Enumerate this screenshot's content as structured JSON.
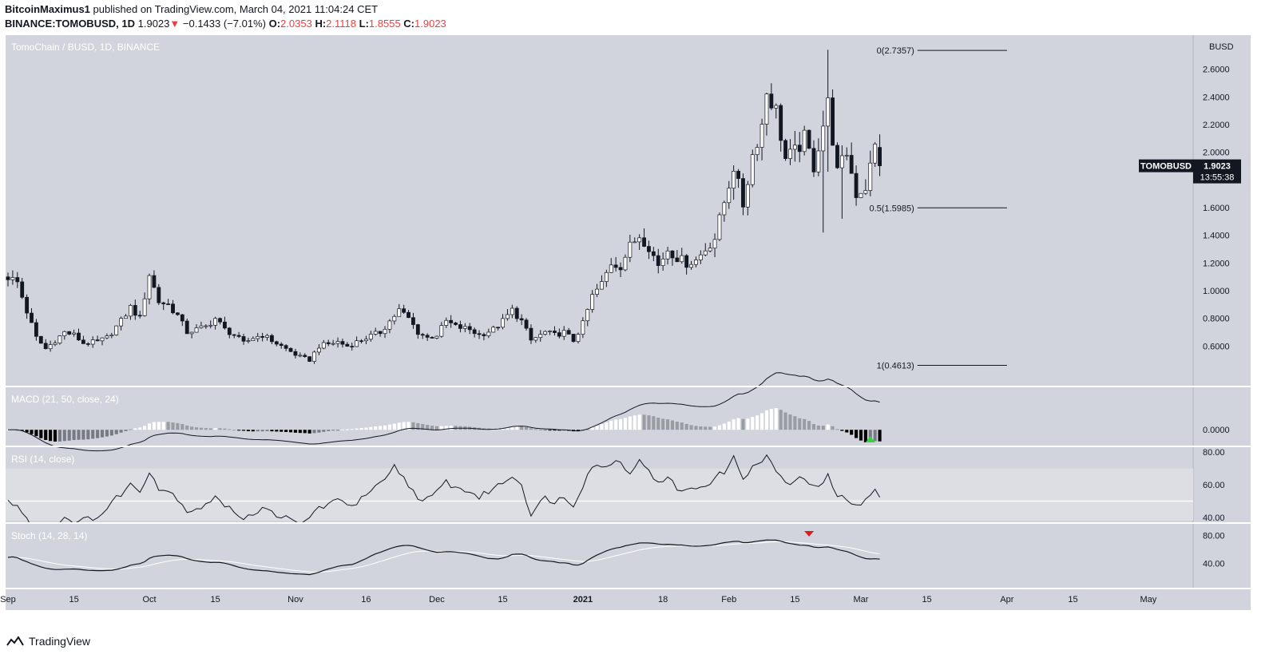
{
  "header": {
    "author": "BitcoinMaximus1",
    "published_text": "published on TradingView.com, March 04, 2021 11:04:24 CET",
    "symbol_line": "BINANCE:TOMOBUSD, 1D",
    "last": "1.9023",
    "change_arrow": "▼",
    "change": "−0.1433 (−7.01%)",
    "o_label": "O:",
    "o": "2.0353",
    "h_label": "H:",
    "h": "2.1118",
    "l_label": "L:",
    "l": "1.8555",
    "c_label": "C:",
    "c": "1.9023"
  },
  "footer": {
    "brand": "TradingView"
  },
  "colors": {
    "pane_bg": "#d1d4dc",
    "rsi_band": "#dcdee4",
    "up_candle": "#ffffff",
    "down_candle": "#131722",
    "price_tag_bg": "#131722",
    "arrow_up": "#35d43e",
    "arrow_down": "#e01b1b"
  },
  "chart_data": [
    {
      "type": "candlestick",
      "title": "TomoChain / BUSD, 1D, BINANCE",
      "price_axis_unit": "BUSD",
      "ylim": [
        0.36,
        2.8
      ],
      "y_ticks": [
        "0.6000",
        "0.8000",
        "1.0000",
        "1.2000",
        "1.4000",
        "1.6000",
        "1.8000",
        "2.0000",
        "2.2000",
        "2.4000",
        "2.6000"
      ],
      "x_ticks": [
        "Sep",
        "15",
        "Oct",
        "15",
        "Nov",
        "16",
        "Dec",
        "15",
        "2021",
        "18",
        "Feb",
        "15",
        "Mar",
        "15",
        "Apr",
        "15",
        "May"
      ],
      "x_tick_days": [
        0,
        14,
        30,
        44,
        61,
        76,
        91,
        105,
        122,
        139,
        153,
        167,
        181,
        195,
        212,
        226,
        242
      ],
      "day_range": [
        0,
        251
      ],
      "last_price_tag": {
        "symbol": "TOMOBUSD",
        "price": "1.9023",
        "countdown": "13:55:38",
        "value": 1.9023
      },
      "fibonacci": [
        {
          "label": "0(2.7357)",
          "value": 2.7357
        },
        {
          "label": "0.5(1.5985)",
          "value": 1.5985
        },
        {
          "label": "1(0.4613)",
          "value": 0.4613
        }
      ],
      "fib_day_range": [
        193,
        212
      ],
      "anchors": [
        {
          "d": 0,
          "c": 1.1
        },
        {
          "d": 2,
          "c": 1.06
        },
        {
          "d": 4,
          "c": 0.85
        },
        {
          "d": 6,
          "c": 0.66
        },
        {
          "d": 8,
          "c": 0.58
        },
        {
          "d": 10,
          "c": 0.64
        },
        {
          "d": 12,
          "c": 0.7
        },
        {
          "d": 14,
          "c": 0.68
        },
        {
          "d": 16,
          "c": 0.62
        },
        {
          "d": 19,
          "c": 0.63
        },
        {
          "d": 21,
          "c": 0.66
        },
        {
          "d": 24,
          "c": 0.78
        },
        {
          "d": 26,
          "c": 0.88
        },
        {
          "d": 28,
          "c": 0.8
        },
        {
          "d": 30,
          "c": 1.12
        },
        {
          "d": 32,
          "c": 0.92
        },
        {
          "d": 34,
          "c": 0.9
        },
        {
          "d": 36,
          "c": 0.82
        },
        {
          "d": 38,
          "c": 0.7
        },
        {
          "d": 42,
          "c": 0.74
        },
        {
          "d": 44,
          "c": 0.8
        },
        {
          "d": 46,
          "c": 0.72
        },
        {
          "d": 48,
          "c": 0.68
        },
        {
          "d": 50,
          "c": 0.62
        },
        {
          "d": 52,
          "c": 0.66
        },
        {
          "d": 54,
          "c": 0.68
        },
        {
          "d": 57,
          "c": 0.62
        },
        {
          "d": 60,
          "c": 0.56
        },
        {
          "d": 62,
          "c": 0.52
        },
        {
          "d": 64,
          "c": 0.5
        },
        {
          "d": 66,
          "c": 0.6
        },
        {
          "d": 70,
          "c": 0.63
        },
        {
          "d": 72,
          "c": 0.6
        },
        {
          "d": 76,
          "c": 0.66
        },
        {
          "d": 79,
          "c": 0.7
        },
        {
          "d": 81,
          "c": 0.78
        },
        {
          "d": 83,
          "c": 0.86
        },
        {
          "d": 85,
          "c": 0.8
        },
        {
          "d": 87,
          "c": 0.7
        },
        {
          "d": 89,
          "c": 0.66
        },
        {
          "d": 91,
          "c": 0.68
        },
        {
          "d": 93,
          "c": 0.78
        },
        {
          "d": 95,
          "c": 0.74
        },
        {
          "d": 98,
          "c": 0.72
        },
        {
          "d": 100,
          "c": 0.68
        },
        {
          "d": 103,
          "c": 0.72
        },
        {
          "d": 105,
          "c": 0.78
        },
        {
          "d": 107,
          "c": 0.86
        },
        {
          "d": 109,
          "c": 0.78
        },
        {
          "d": 111,
          "c": 0.64
        },
        {
          "d": 114,
          "c": 0.7
        },
        {
          "d": 116,
          "c": 0.68
        },
        {
          "d": 118,
          "c": 0.7
        },
        {
          "d": 120,
          "c": 0.64
        },
        {
          "d": 122,
          "c": 0.76
        },
        {
          "d": 124,
          "c": 0.96
        },
        {
          "d": 126,
          "c": 1.05
        },
        {
          "d": 128,
          "c": 1.2
        },
        {
          "d": 130,
          "c": 1.18
        },
        {
          "d": 132,
          "c": 1.32
        },
        {
          "d": 134,
          "c": 1.4
        },
        {
          "d": 136,
          "c": 1.32
        },
        {
          "d": 138,
          "c": 1.18
        },
        {
          "d": 140,
          "c": 1.3
        },
        {
          "d": 142,
          "c": 1.24
        },
        {
          "d": 144,
          "c": 1.2
        },
        {
          "d": 146,
          "c": 1.22
        },
        {
          "d": 148,
          "c": 1.3
        },
        {
          "d": 150,
          "c": 1.38
        },
        {
          "d": 152,
          "c": 1.64
        },
        {
          "d": 154,
          "c": 1.9
        },
        {
          "d": 156,
          "c": 1.62
        },
        {
          "d": 158,
          "c": 1.98
        },
        {
          "d": 160,
          "c": 2.2
        },
        {
          "d": 161,
          "c": 2.44
        },
        {
          "d": 163,
          "c": 2.3
        },
        {
          "d": 165,
          "c": 1.95
        },
        {
          "d": 167,
          "c": 2.0
        },
        {
          "d": 169,
          "c": 2.1
        },
        {
          "d": 171,
          "c": 1.9
        },
        {
          "d": 173,
          "c": 2.2
        },
        {
          "d": 174,
          "c": 2.35
        },
        {
          "d": 176,
          "c": 1.85
        },
        {
          "d": 178,
          "c": 2.0
        },
        {
          "d": 180,
          "c": 1.7
        },
        {
          "d": 182,
          "c": 1.75
        },
        {
          "d": 184,
          "c": 2.04
        },
        {
          "d": 185,
          "c": 1.9
        }
      ],
      "wick_overrides": [
        {
          "d": 174,
          "h": 2.74,
          "l": 1.86
        },
        {
          "d": 173,
          "h": 2.3,
          "l": 1.42
        },
        {
          "d": 177,
          "h": 2.05,
          "l": 1.52
        }
      ]
    },
    {
      "type": "histogram+line",
      "title": "MACD (21, 50, close, 24)",
      "y_ticks": [
        "0.0000"
      ],
      "ylim": [
        -0.07,
        0.24
      ],
      "signal_arrow": {
        "day": 183,
        "direction": "up"
      }
    },
    {
      "type": "line",
      "title": "RSI (14, close)",
      "y_ticks": [
        "40.00",
        "60.00",
        "80.00"
      ],
      "ylim": [
        38,
        82
      ],
      "band": [
        30,
        70
      ],
      "midline": 50,
      "anchors": [
        {
          "d": 0,
          "v": 50
        },
        {
          "d": 3,
          "v": 44
        },
        {
          "d": 6,
          "v": 30
        },
        {
          "d": 9,
          "v": 34
        },
        {
          "d": 12,
          "v": 40
        },
        {
          "d": 15,
          "v": 37
        },
        {
          "d": 20,
          "v": 42
        },
        {
          "d": 23,
          "v": 52
        },
        {
          "d": 26,
          "v": 60
        },
        {
          "d": 28,
          "v": 56
        },
        {
          "d": 30,
          "v": 69
        },
        {
          "d": 32,
          "v": 58
        },
        {
          "d": 34,
          "v": 56
        },
        {
          "d": 36,
          "v": 52
        },
        {
          "d": 38,
          "v": 44
        },
        {
          "d": 42,
          "v": 47
        },
        {
          "d": 44,
          "v": 54
        },
        {
          "d": 46,
          "v": 46
        },
        {
          "d": 48,
          "v": 44
        },
        {
          "d": 50,
          "v": 40
        },
        {
          "d": 54,
          "v": 45
        },
        {
          "d": 58,
          "v": 41
        },
        {
          "d": 62,
          "v": 35
        },
        {
          "d": 66,
          "v": 46
        },
        {
          "d": 70,
          "v": 50
        },
        {
          "d": 74,
          "v": 48
        },
        {
          "d": 76,
          "v": 54
        },
        {
          "d": 80,
          "v": 62
        },
        {
          "d": 82,
          "v": 71
        },
        {
          "d": 84,
          "v": 64
        },
        {
          "d": 86,
          "v": 56
        },
        {
          "d": 88,
          "v": 50
        },
        {
          "d": 90,
          "v": 52
        },
        {
          "d": 93,
          "v": 62
        },
        {
          "d": 95,
          "v": 58
        },
        {
          "d": 98,
          "v": 56
        },
        {
          "d": 100,
          "v": 52
        },
        {
          "d": 103,
          "v": 58
        },
        {
          "d": 105,
          "v": 61
        },
        {
          "d": 107,
          "v": 66
        },
        {
          "d": 109,
          "v": 60
        },
        {
          "d": 111,
          "v": 42
        },
        {
          "d": 114,
          "v": 52
        },
        {
          "d": 116,
          "v": 50
        },
        {
          "d": 118,
          "v": 52
        },
        {
          "d": 120,
          "v": 48
        },
        {
          "d": 122,
          "v": 60
        },
        {
          "d": 124,
          "v": 72
        },
        {
          "d": 126,
          "v": 70
        },
        {
          "d": 128,
          "v": 74
        },
        {
          "d": 130,
          "v": 74
        },
        {
          "d": 132,
          "v": 68
        },
        {
          "d": 134,
          "v": 74
        },
        {
          "d": 136,
          "v": 70
        },
        {
          "d": 138,
          "v": 60
        },
        {
          "d": 140,
          "v": 64
        },
        {
          "d": 142,
          "v": 58
        },
        {
          "d": 144,
          "v": 56
        },
        {
          "d": 146,
          "v": 58
        },
        {
          "d": 148,
          "v": 60
        },
        {
          "d": 150,
          "v": 64
        },
        {
          "d": 152,
          "v": 68
        },
        {
          "d": 154,
          "v": 76
        },
        {
          "d": 156,
          "v": 65
        },
        {
          "d": 158,
          "v": 70
        },
        {
          "d": 160,
          "v": 74
        },
        {
          "d": 161,
          "v": 79
        },
        {
          "d": 163,
          "v": 68
        },
        {
          "d": 165,
          "v": 60
        },
        {
          "d": 167,
          "v": 62
        },
        {
          "d": 169,
          "v": 64
        },
        {
          "d": 171,
          "v": 58
        },
        {
          "d": 173,
          "v": 62
        },
        {
          "d": 174,
          "v": 65
        },
        {
          "d": 176,
          "v": 52
        },
        {
          "d": 178,
          "v": 52
        },
        {
          "d": 180,
          "v": 48
        },
        {
          "d": 182,
          "v": 50
        },
        {
          "d": 184,
          "v": 57
        },
        {
          "d": 185,
          "v": 52
        }
      ]
    },
    {
      "type": "line",
      "title": "Stoch (14, 28, 14)",
      "y_ticks": [
        "40.00",
        "80.00"
      ],
      "ylim": [
        10,
        92
      ],
      "signal_arrow": {
        "day": 170,
        "direction": "down"
      }
    }
  ]
}
